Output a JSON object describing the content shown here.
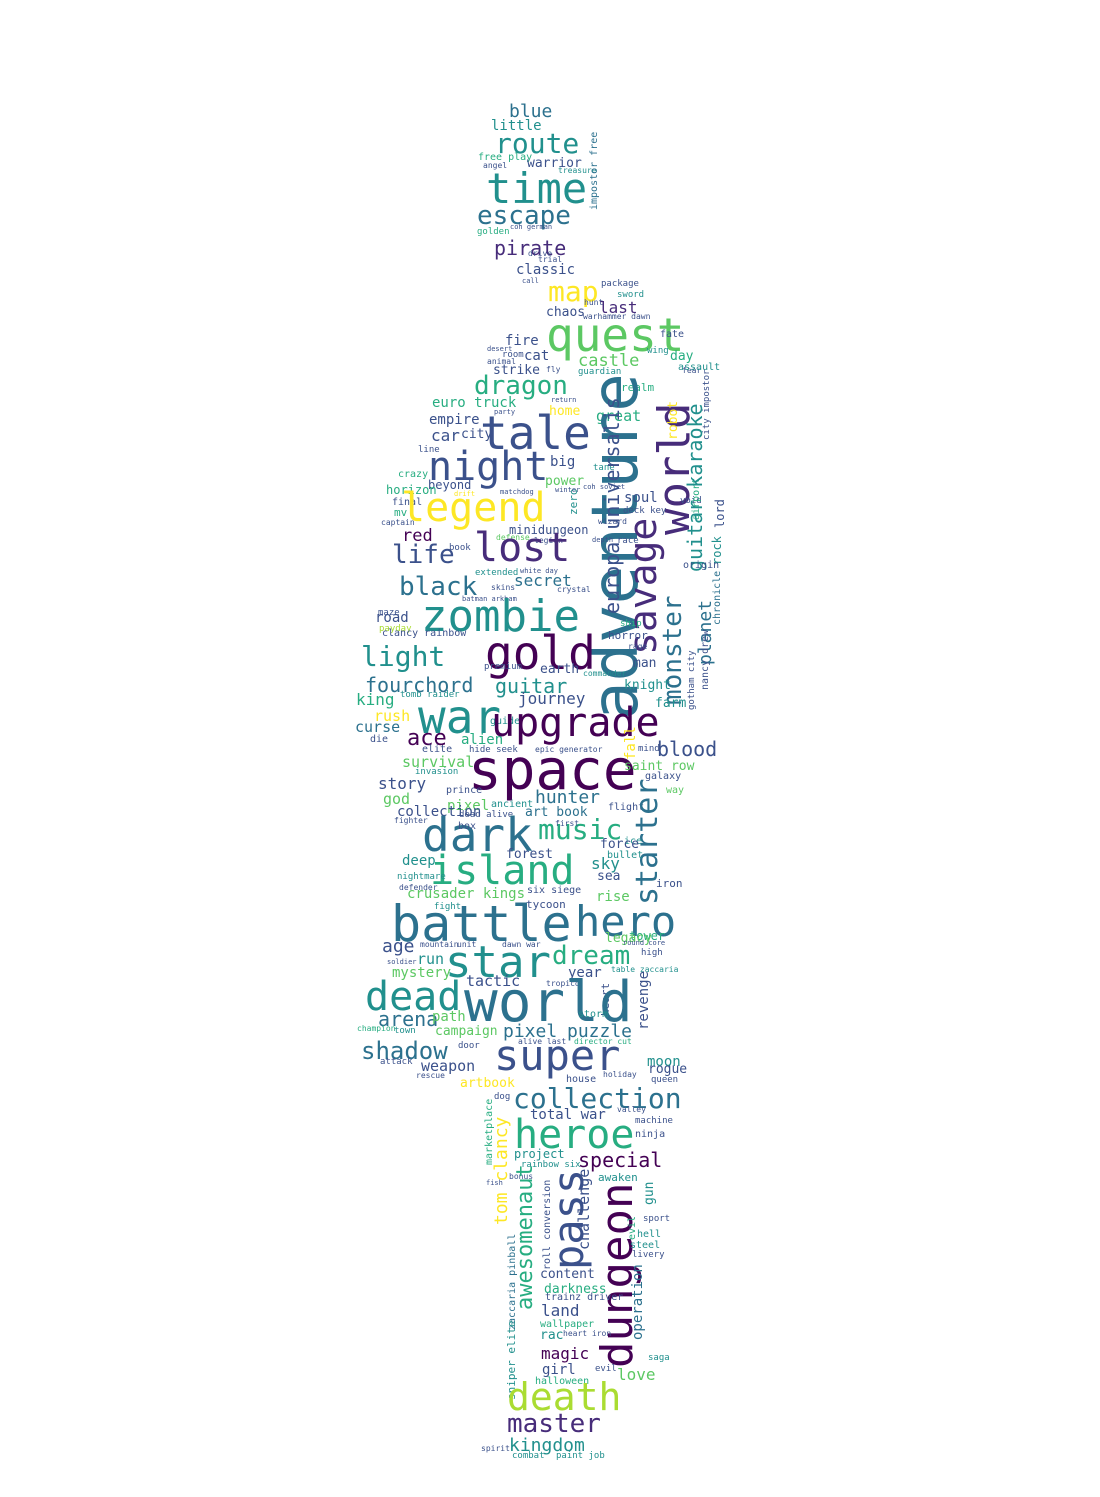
{
  "palette": {
    "deep_purple": "#440154",
    "indigo": "#472c7a",
    "slate_blue": "#3b518b",
    "steel_blue": "#2c718e",
    "teal": "#21908d",
    "sea_green": "#27ad81",
    "green": "#5cc863",
    "lime": "#aadc32",
    "yellow": "#fde725"
  },
  "words": [
    {
      "text": "space",
      "color": "#440154"
    },
    {
      "text": "adventure",
      "color": "#2c718e"
    },
    {
      "text": "world",
      "color": "#2c718e"
    },
    {
      "text": "battle",
      "color": "#2c718e"
    },
    {
      "text": "war",
      "color": "#21908d"
    },
    {
      "text": "upgrade",
      "color": "#440154"
    },
    {
      "text": "dark",
      "color": "#2c718e"
    },
    {
      "text": "island",
      "color": "#27ad81"
    },
    {
      "text": "zombie",
      "color": "#21908d"
    },
    {
      "text": "gold",
      "color": "#440154"
    },
    {
      "text": "super",
      "color": "#3b518b"
    },
    {
      "text": "quest",
      "color": "#5cc863"
    },
    {
      "text": "lost",
      "color": "#472c7a"
    },
    {
      "text": "legend",
      "color": "#fde725"
    },
    {
      "text": "night",
      "color": "#3b518b"
    },
    {
      "text": "tale",
      "color": "#3b518b"
    },
    {
      "text": "time",
      "color": "#21908d"
    },
    {
      "text": "death",
      "color": "#aadc32"
    },
    {
      "text": "heroe",
      "color": "#27ad81"
    },
    {
      "text": "hero",
      "color": "#2c718e"
    },
    {
      "text": "dead",
      "color": "#21908d"
    },
    {
      "text": "star",
      "color": "#21908d"
    },
    {
      "text": "dungeon",
      "color": "#440154"
    },
    {
      "text": "pass",
      "color": "#3b518b"
    },
    {
      "text": "savage",
      "color": "#472c7a"
    },
    {
      "text": "world",
      "color": "#472c7a"
    },
    {
      "text": "starter",
      "color": "#2c718e"
    },
    {
      "text": "music",
      "color": "#27ad81"
    },
    {
      "text": "light",
      "color": "#21908d"
    },
    {
      "text": "life",
      "color": "#3b518b"
    },
    {
      "text": "black",
      "color": "#2c718e"
    },
    {
      "text": "dragon",
      "color": "#27ad81"
    },
    {
      "text": "collection",
      "color": "#2c718e"
    },
    {
      "text": "shadow",
      "color": "#2c718e"
    },
    {
      "text": "master",
      "color": "#472c7a"
    },
    {
      "text": "escape",
      "color": "#2c718e"
    },
    {
      "text": "route",
      "color": "#21908d"
    },
    {
      "text": "map",
      "color": "#fde725"
    },
    {
      "text": "blood",
      "color": "#3b518b"
    },
    {
      "text": "hunter",
      "color": "#2c718e"
    },
    {
      "text": "ace",
      "color": "#440154"
    },
    {
      "text": "fourchord",
      "color": "#2c718e"
    },
    {
      "text": "guitar",
      "color": "#21908d"
    },
    {
      "text": "monster",
      "color": "#2c718e"
    },
    {
      "text": "guitar karaoke",
      "color": "#21908d"
    },
    {
      "text": "europa universalis",
      "color": "#3b518b"
    },
    {
      "text": "awesomenaut",
      "color": "#27ad81"
    },
    {
      "text": "dream",
      "color": "#27ad81"
    },
    {
      "text": "kingdom",
      "color": "#21908d"
    },
    {
      "text": "special",
      "color": "#440154"
    },
    {
      "text": "pirate",
      "color": "#472c7a"
    },
    {
      "text": "blue",
      "color": "#2c718e"
    },
    {
      "text": "little",
      "color": "#21908d"
    },
    {
      "text": "castle",
      "color": "#5cc863"
    },
    {
      "text": "secret",
      "color": "#2c718e"
    },
    {
      "text": "arena",
      "color": "#2c718e"
    },
    {
      "text": "story",
      "color": "#3b518b"
    },
    {
      "text": "pixel",
      "color": "#2c718e"
    },
    {
      "text": "puzzle",
      "color": "#2c718e"
    },
    {
      "text": "love",
      "color": "#5cc863"
    },
    {
      "text": "magic",
      "color": "#440154"
    },
    {
      "text": "land",
      "color": "#3b518b"
    },
    {
      "text": "tom clancy",
      "color": "#fde725"
    },
    {
      "text": "planet",
      "color": "#2c718e"
    },
    {
      "text": "classic",
      "color": "#3b518b"
    },
    {
      "text": "last",
      "color": "#472c7a"
    },
    {
      "text": "warrior",
      "color": "#3b518b"
    },
    {
      "text": "age",
      "color": "#3b518b"
    },
    {
      "text": "run",
      "color": "#21908d"
    },
    {
      "text": "survival",
      "color": "#5cc863"
    },
    {
      "text": "king",
      "color": "#27ad81"
    },
    {
      "text": "god",
      "color": "#5cc863"
    },
    {
      "text": "journey",
      "color": "#3b518b"
    },
    {
      "text": "weapon",
      "color": "#3b518b"
    },
    {
      "text": "deep",
      "color": "#21908d"
    },
    {
      "text": "sky",
      "color": "#21908d"
    },
    {
      "text": "forest",
      "color": "#3b518b"
    },
    {
      "text": "minidungeon",
      "color": "#3b518b"
    },
    {
      "text": "red",
      "color": "#440154"
    },
    {
      "text": "car",
      "color": "#3b518b"
    },
    {
      "text": "chaos",
      "color": "#3b518b"
    },
    {
      "text": "fire",
      "color": "#3b518b"
    },
    {
      "text": "cat",
      "color": "#3b518b"
    },
    {
      "text": "strike",
      "color": "#3b518b"
    },
    {
      "text": "euro truck",
      "color": "#27ad81"
    },
    {
      "text": "empire",
      "color": "#3b518b"
    },
    {
      "text": "city",
      "color": "#3b518b"
    },
    {
      "text": "soul",
      "color": "#3b518b"
    },
    {
      "text": "great",
      "color": "#27ad81"
    },
    {
      "text": "home",
      "color": "#fde725"
    },
    {
      "text": "beyond",
      "color": "#3b518b"
    },
    {
      "text": "power",
      "color": "#5cc863"
    },
    {
      "text": "mystery",
      "color": "#5cc863"
    },
    {
      "text": "crusader kings",
      "color": "#5cc863"
    },
    {
      "text": "challenge",
      "color": "#3b518b"
    },
    {
      "text": "rise",
      "color": "#5cc863"
    },
    {
      "text": "legacy",
      "color": "#5cc863"
    },
    {
      "text": "tower",
      "color": "#27ad81"
    },
    {
      "text": "campaign",
      "color": "#5cc863"
    },
    {
      "text": "path",
      "color": "#5cc863"
    },
    {
      "text": "artbook",
      "color": "#fde725"
    },
    {
      "text": "total war",
      "color": "#3b518b"
    },
    {
      "text": "project",
      "color": "#21908d"
    },
    {
      "text": "content",
      "color": "#3b518b"
    },
    {
      "text": "darkness",
      "color": "#27ad81"
    },
    {
      "text": "operation",
      "color": "#2c718e"
    },
    {
      "text": "girl",
      "color": "#3b518b"
    },
    {
      "text": "rogue",
      "color": "#3b518b"
    },
    {
      "text": "moon",
      "color": "#21908d"
    },
    {
      "text": "tactic",
      "color": "#3b518b"
    },
    {
      "text": "year",
      "color": "#3b518b"
    },
    {
      "text": "saint row",
      "color": "#5cc863"
    },
    {
      "text": "knight",
      "color": "#21908d"
    },
    {
      "text": "farm",
      "color": "#21908d"
    },
    {
      "text": "man",
      "color": "#3b518b"
    },
    {
      "text": "earth",
      "color": "#3b518b"
    },
    {
      "text": "curse",
      "color": "#2c718e"
    },
    {
      "text": "rush",
      "color": "#fde725"
    },
    {
      "text": "road",
      "color": "#3b518b"
    },
    {
      "text": "alien",
      "color": "#27ad81"
    },
    {
      "text": "art book",
      "color": "#2c718e"
    },
    {
      "text": "force",
      "color": "#3b518b"
    },
    {
      "text": "sea",
      "color": "#3b518b"
    },
    {
      "text": "guardian",
      "color": "#21908d"
    },
    {
      "text": "day",
      "color": "#27ad81"
    },
    {
      "text": "fate",
      "color": "#3b518b"
    },
    {
      "text": "lord",
      "color": "#3b518b"
    },
    {
      "text": "revenge",
      "color": "#3b518b"
    },
    {
      "text": "halloween",
      "color": "#27ad81"
    },
    {
      "text": "free play",
      "color": "#27ad81"
    },
    {
      "text": "treasure",
      "color": "#21908d"
    },
    {
      "text": "impostor free",
      "color": "#2c718e"
    },
    {
      "text": "hunt",
      "color": "#3b518b"
    },
    {
      "text": "sword",
      "color": "#21908d"
    },
    {
      "text": "package",
      "color": "#3b518b"
    },
    {
      "text": "horror",
      "color": "#3b518b"
    },
    {
      "text": "galaxy",
      "color": "#3b518b"
    },
    {
      "text": "elite",
      "color": "#3b518b"
    },
    {
      "text": "invasion",
      "color": "#21908d"
    },
    {
      "text": "prince",
      "color": "#3b518b"
    },
    {
      "text": "ancient",
      "color": "#21908d"
    },
    {
      "text": "flight",
      "color": "#3b518b"
    },
    {
      "text": "dead alive",
      "color": "#3b518b"
    },
    {
      "text": "box",
      "color": "#3b518b"
    },
    {
      "text": "first",
      "color": "#3b518b"
    },
    {
      "text": "ice",
      "color": "#21908d"
    },
    {
      "text": "bullet",
      "color": "#21908d"
    },
    {
      "text": "iron",
      "color": "#3b518b"
    },
    {
      "text": "tycoon",
      "color": "#3b518b"
    },
    {
      "text": "six siege",
      "color": "#3b518b"
    },
    {
      "text": "storm",
      "color": "#21908d"
    },
    {
      "text": "town",
      "color": "#21908d"
    },
    {
      "text": "house",
      "color": "#3b518b"
    },
    {
      "text": "queen",
      "color": "#3b518b"
    },
    {
      "text": "ninja",
      "color": "#3b518b"
    },
    {
      "text": "gun",
      "color": "#21908d"
    },
    {
      "text": "awaken",
      "color": "#21908d"
    },
    {
      "text": "hell",
      "color": "#21908d"
    },
    {
      "text": "steel",
      "color": "#21908d"
    },
    {
      "text": "rac",
      "color": "#21908d"
    },
    {
      "text": "saga",
      "color": "#21908d"
    },
    {
      "text": "wallpaper",
      "color": "#27ad81"
    },
    {
      "text": "combat",
      "color": "#21908d"
    },
    {
      "text": "spirit",
      "color": "#3b518b"
    },
    {
      "text": "paint job",
      "color": "#21908d"
    },
    {
      "text": "table zaccaria",
      "color": "#21908d"
    },
    {
      "text": "nancy drew",
      "color": "#3b518b"
    },
    {
      "text": "gotham city",
      "color": "#3b518b"
    },
    {
      "text": "chronicle",
      "color": "#2c718e"
    },
    {
      "text": "origin",
      "color": "#3b518b"
    },
    {
      "text": "deck key",
      "color": "#3b518b"
    },
    {
      "text": "tane",
      "color": "#21908d"
    },
    {
      "text": "wizard",
      "color": "#3b518b"
    },
    {
      "text": "defense",
      "color": "#5cc863"
    },
    {
      "text": "legion",
      "color": "#3b518b"
    },
    {
      "text": "crystal",
      "color": "#3b518b"
    },
    {
      "text": "white day",
      "color": "#3b518b"
    },
    {
      "text": "skins",
      "color": "#3b518b"
    },
    {
      "text": "extended",
      "color": "#21908d"
    },
    {
      "text": "maze",
      "color": "#3b518b"
    },
    {
      "text": "payday",
      "color": "#aadc32"
    },
    {
      "text": "captain",
      "color": "#3b518b"
    },
    {
      "text": "horizon",
      "color": "#27ad81"
    },
    {
      "text": "final",
      "color": "#3b518b"
    },
    {
      "text": "crazy",
      "color": "#27ad81"
    },
    {
      "text": "line",
      "color": "#3b518b"
    },
    {
      "text": "mv",
      "color": "#27ad81"
    },
    {
      "text": "book",
      "color": "#3b518b"
    },
    {
      "text": "clancy rainbow",
      "color": "#3b518b"
    },
    {
      "text": "premium",
      "color": "#3b518b"
    },
    {
      "text": "tomb raider",
      "color": "#21908d"
    },
    {
      "text": "die",
      "color": "#3b518b"
    },
    {
      "text": "fighter",
      "color": "#3b518b"
    },
    {
      "text": "nightmare",
      "color": "#21908d"
    },
    {
      "text": "defender",
      "color": "#3b518b"
    },
    {
      "text": "fight",
      "color": "#21908d"
    },
    {
      "text": "high",
      "color": "#3b518b"
    },
    {
      "text": "soldier",
      "color": "#3b518b"
    },
    {
      "text": "champion",
      "color": "#27ad81"
    },
    {
      "text": "door",
      "color": "#3b518b"
    },
    {
      "text": "attack",
      "color": "#3b518b"
    },
    {
      "text": "rescue",
      "color": "#3b518b"
    },
    {
      "text": "dog",
      "color": "#3b518b"
    },
    {
      "text": "marketplace",
      "color": "#27ad81"
    },
    {
      "text": "fish",
      "color": "#3b518b"
    },
    {
      "text": "bonus",
      "color": "#3b518b"
    },
    {
      "text": "rainbow six",
      "color": "#21908d"
    },
    {
      "text": "zaccaria pinball",
      "color": "#2c718e"
    },
    {
      "text": "sniper elite",
      "color": "#21908d"
    },
    {
      "text": "trainz driver",
      "color": "#3b518b"
    },
    {
      "text": "heart iron",
      "color": "#3b518b"
    },
    {
      "text": "roll conversion",
      "color": "#3b518b"
    },
    {
      "text": "angel",
      "color": "#3b518b"
    },
    {
      "text": "realm",
      "color": "#27ad81"
    },
    {
      "text": "assault",
      "color": "#21908d"
    },
    {
      "text": "wing",
      "color": "#21908d"
    },
    {
      "text": "fear",
      "color": "#3b518b"
    },
    {
      "text": "room",
      "color": "#3b518b"
    },
    {
      "text": "animal",
      "color": "#3b518b"
    },
    {
      "text": "desert",
      "color": "#3b518b"
    },
    {
      "text": "party",
      "color": "#3b518b"
    },
    {
      "text": "zero",
      "color": "#21908d"
    },
    {
      "text": "big",
      "color": "#3b518b"
    },
    {
      "text": "winter",
      "color": "#3b518b"
    },
    {
      "text": "void",
      "color": "#3b518b"
    },
    {
      "text": "airport",
      "color": "#27ad81"
    },
    {
      "text": "city impostor",
      "color": "#3b518b"
    },
    {
      "text": "robot",
      "color": "#fde725"
    },
    {
      "text": "rock",
      "color": "#21908d"
    },
    {
      "text": "race",
      "color": "#3b518b"
    },
    {
      "text": "depth",
      "color": "#3b518b"
    },
    {
      "text": "guide",
      "color": "#21908d"
    },
    {
      "text": "hide seek",
      "color": "#3b518b"
    },
    {
      "text": "epic generator",
      "color": "#3b518b"
    },
    {
      "text": "way",
      "color": "#5cc863"
    },
    {
      "text": "drive",
      "color": "#3b518b"
    },
    {
      "text": "trial",
      "color": "#3b518b"
    },
    {
      "text": "call",
      "color": "#3b518b"
    },
    {
      "text": "golden",
      "color": "#27ad81"
    },
    {
      "text": "coh german",
      "color": "#3b518b"
    },
    {
      "text": "warhammer dawn",
      "color": "#3b518b"
    },
    {
      "text": "fall",
      "color": "#fde725"
    },
    {
      "text": "mind",
      "color": "#3b518b"
    },
    {
      "text": "commander",
      "color": "#21908d"
    },
    {
      "text": "dawn war",
      "color": "#3b518b"
    },
    {
      "text": "unit",
      "color": "#3b518b"
    },
    {
      "text": "mountain",
      "color": "#3b518b"
    },
    {
      "text": "alive last",
      "color": "#3b518b"
    },
    {
      "text": "director cut",
      "color": "#27ad81"
    },
    {
      "text": "round core",
      "color": "#3b518b"
    },
    {
      "text": "sport",
      "color": "#3b518b"
    },
    {
      "text": "livery",
      "color": "#3b518b"
    },
    {
      "text": "machine",
      "color": "#3b518b"
    },
    {
      "text": "valley",
      "color": "#3b518b"
    },
    {
      "text": "evil",
      "color": "#3b518b"
    },
    {
      "text": "holiday",
      "color": "#3b518b"
    },
    {
      "text": "heart",
      "color": "#3b518b"
    },
    {
      "text": "tropico",
      "color": "#3b518b"
    },
    {
      "text": "sound track",
      "color": "#3b518b"
    },
    {
      "text": "batman arkham",
      "color": "#3b518b"
    },
    {
      "text": "warfare",
      "color": "#3b518b"
    },
    {
      "text": "solitaire",
      "color": "#3b518b"
    },
    {
      "text": "matchdog",
      "color": "#3b518b"
    },
    {
      "text": "coh soviet",
      "color": "#3b518b"
    },
    {
      "text": "drift",
      "color": "#fde725"
    },
    {
      "text": "return",
      "color": "#3b518b"
    },
    {
      "text": "fly",
      "color": "#3b518b"
    },
    {
      "text": "rage",
      "color": "#3b518b"
    },
    {
      "text": "ship",
      "color": "#27ad81"
    }
  ]
}
